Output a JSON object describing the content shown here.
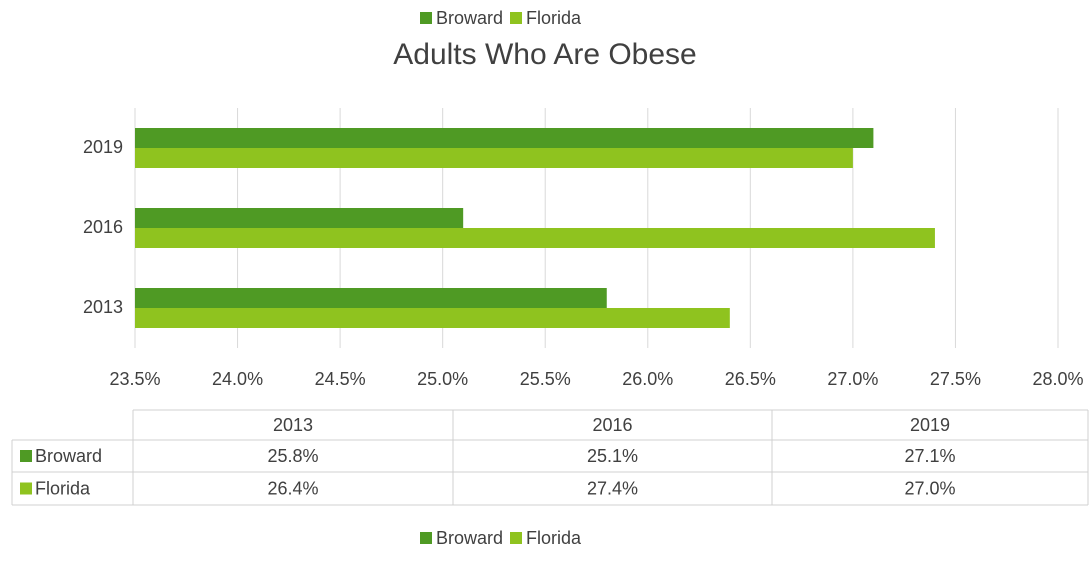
{
  "chart_data": {
    "type": "bar",
    "orientation": "horizontal",
    "title": "Adults Who Are Obese",
    "categories": [
      "2013",
      "2016",
      "2019"
    ],
    "series": [
      {
        "name": "Broward",
        "color": "#4f9a24",
        "values": [
          25.8,
          25.1,
          27.1
        ],
        "value_labels": [
          "25.8%",
          "25.1%",
          "27.1%"
        ]
      },
      {
        "name": "Florida",
        "color": "#8fc31f",
        "values": [
          26.4,
          27.4,
          27.0
        ],
        "value_labels": [
          "26.4%",
          "27.4%",
          "27.0%"
        ]
      }
    ],
    "xlim": [
      23.5,
      28.0
    ],
    "xticks": [
      {
        "value": 23.5,
        "label": "23.5%"
      },
      {
        "value": 24.0,
        "label": "24.0%"
      },
      {
        "value": 24.5,
        "label": "24.5%"
      },
      {
        "value": 25.0,
        "label": "25.0%"
      },
      {
        "value": 25.5,
        "label": "25.5%"
      },
      {
        "value": 26.0,
        "label": "26.0%"
      },
      {
        "value": 26.5,
        "label": "26.5%"
      },
      {
        "value": 27.0,
        "label": "27.0%"
      },
      {
        "value": 27.5,
        "label": "27.5%"
      },
      {
        "value": 28.0,
        "label": "28.0%"
      }
    ],
    "grid": true,
    "legend": "top",
    "data_table": true
  }
}
